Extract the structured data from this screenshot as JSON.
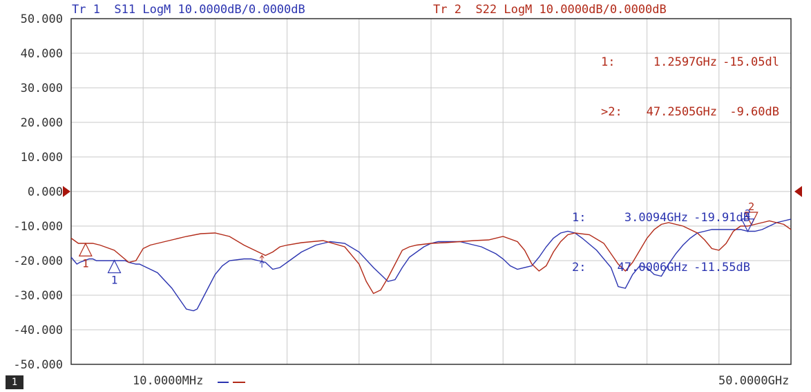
{
  "header": {
    "tr1": "Tr 1  S11 LogM 10.0000dB/0.0000dB",
    "tr2": "Tr 2  S22 LogM 10.0000dB/0.0000dB"
  },
  "markers_tr2": [
    {
      "label": "1:",
      "freq": "1.2597GHz",
      "value": "-15.05dl"
    },
    {
      "label": ">2:",
      "freq": "47.2505GHz",
      "value": "-9.60dB"
    }
  ],
  "markers_tr1": [
    {
      "label": "1:",
      "freq": "3.0094GHz",
      "value": "-19.91dB"
    },
    {
      "label": "2:",
      "freq": "47.0006GHz",
      "value": "-11.55dB"
    }
  ],
  "footer": {
    "channel": "1",
    "start": "10.0000MHz",
    "stop": "50.0000GHz"
  },
  "colors": {
    "tr1": "#2b34b0",
    "tr2": "#b22a18",
    "grid": "#c8c8c8",
    "frame": "#333333",
    "reference_arrow": "#a8150c"
  },
  "chart_data": {
    "type": "line",
    "title": "",
    "xlabel": "",
    "ylabel": "",
    "x_divisions": 10,
    "x_start_label": "10.0000MHz",
    "x_stop_label": "50.0000GHz",
    "yticks": [
      "50.000",
      "40.000",
      "30.000",
      "20.000",
      "10.000",
      "0.000",
      "-10.000",
      "-20.000",
      "-30.000",
      "-40.000",
      "-50.000"
    ],
    "ylim": [
      -50,
      50
    ],
    "reference_level": 0,
    "grid": true,
    "series": [
      {
        "name": "Tr 1 S11",
        "x": [
          0,
          0.08,
          0.12,
          0.25,
          0.3,
          0.35,
          0.5,
          0.6,
          0.75,
          0.8,
          0.9,
          0.95,
          1.0,
          1.2,
          1.4,
          1.5,
          1.6,
          1.7,
          1.75,
          1.8,
          1.9,
          2.0,
          2.1,
          2.2,
          2.4,
          2.5,
          2.6,
          2.7,
          2.8,
          2.9,
          3.0,
          3.1,
          3.2,
          3.3,
          3.4,
          3.5,
          3.6,
          3.8,
          4.0,
          4.2,
          4.4,
          4.5,
          4.6,
          4.7,
          4.9,
          5.0,
          5.1,
          5.2,
          5.4,
          5.5,
          5.6,
          5.7,
          5.9,
          6.0,
          6.1,
          6.2,
          6.4,
          6.5,
          6.6,
          6.7,
          6.8,
          6.9,
          7.0,
          7.1,
          7.3,
          7.5,
          7.6,
          7.7,
          7.8,
          7.9,
          8.0,
          8.1,
          8.2,
          8.3,
          8.4,
          8.5,
          8.6,
          8.7,
          8.8,
          8.9,
          9.0,
          9.1,
          9.2,
          9.3,
          9.4,
          9.5,
          9.6,
          9.7,
          9.8,
          9.9,
          10.0
        ],
        "values": [
          -19,
          -21,
          -20.5,
          -19.5,
          -19.5,
          -20,
          -20,
          -20,
          -20,
          -20.5,
          -21,
          -21,
          -21.5,
          -23.5,
          -28,
          -31,
          -34,
          -34.5,
          -34,
          -32,
          -28,
          -24,
          -21.5,
          -20,
          -19.5,
          -19.5,
          -20,
          -20.5,
          -22.5,
          -22,
          -20.5,
          -19,
          -17.5,
          -16.5,
          -15.5,
          -15,
          -14.5,
          -15,
          -17.5,
          -22,
          -26,
          -25.5,
          -22,
          -19,
          -16,
          -15,
          -14.5,
          -14.5,
          -14.5,
          -15,
          -15.5,
          -16,
          -18,
          -19.5,
          -21.5,
          -22.5,
          -21.5,
          -19,
          -16,
          -13.5,
          -12,
          -11.5,
          -12,
          -13.5,
          -17,
          -22,
          -27.5,
          -28,
          -24,
          -21.5,
          -22,
          -24,
          -24.5,
          -21,
          -18,
          -15.5,
          -13.5,
          -12,
          -11.5,
          -11,
          -11,
          -11,
          -11,
          -11,
          -11.5,
          -11.5,
          -11,
          -10,
          -9,
          -8.5,
          -8
        ]
      },
      {
        "name": "Tr 2 S22",
        "x": [
          0,
          0.1,
          0.2,
          0.3,
          0.4,
          0.6,
          0.8,
          0.9,
          1.0,
          1.1,
          1.2,
          1.4,
          1.6,
          1.8,
          2.0,
          2.2,
          2.4,
          2.6,
          2.7,
          2.8,
          2.9,
          3.0,
          3.2,
          3.5,
          3.8,
          4.0,
          4.1,
          4.2,
          4.3,
          4.4,
          4.5,
          4.6,
          4.7,
          4.8,
          5.0,
          5.2,
          5.4,
          5.6,
          5.8,
          6.0,
          6.2,
          6.3,
          6.4,
          6.5,
          6.6,
          6.7,
          6.8,
          6.9,
          7.0,
          7.2,
          7.4,
          7.6,
          7.7,
          7.8,
          7.9,
          8.0,
          8.1,
          8.2,
          8.3,
          8.5,
          8.7,
          8.8,
          8.9,
          9.0,
          9.1,
          9.2,
          9.3,
          9.4,
          9.5,
          9.6,
          9.7,
          9.8,
          9.9,
          10.0
        ],
        "values": [
          -13.5,
          -15,
          -15,
          -15,
          -15.5,
          -17,
          -20.5,
          -20,
          -16.5,
          -15.5,
          -15,
          -14,
          -13,
          -12.2,
          -12,
          -13,
          -15.5,
          -17.5,
          -18.5,
          -17.5,
          -16,
          -15.5,
          -14.8,
          -14.2,
          -16,
          -21,
          -26,
          -29.5,
          -28.5,
          -25,
          -21,
          -17,
          -16,
          -15.5,
          -15,
          -14.8,
          -14.5,
          -14.2,
          -14,
          -13,
          -14.5,
          -17,
          -21,
          -23,
          -21.5,
          -17.5,
          -14.5,
          -12.5,
          -12,
          -12.5,
          -15,
          -21,
          -23,
          -20.5,
          -17,
          -13.5,
          -11,
          -9.5,
          -9,
          -10,
          -12,
          -14,
          -16.5,
          -17,
          -15,
          -11.5,
          -10,
          -10,
          -9.5,
          -9,
          -8.5,
          -9,
          -9.5,
          -11
        ]
      }
    ],
    "markers": [
      {
        "series": "Tr 2 S22",
        "label": "1",
        "x": 0.2,
        "y": -15.05
      },
      {
        "series": "Tr 1 S11",
        "label": "1",
        "x": 0.6,
        "y": -19.91
      },
      {
        "series": "Tr 2 S22",
        "label": "2",
        "x": 9.45,
        "y": -9.6
      },
      {
        "series": "Tr 1 S11",
        "label": "2",
        "x": 9.4,
        "y": -11.55
      }
    ],
    "unlabeled_marker_arrows": [
      {
        "series": "Tr 2 S22",
        "x": 2.65,
        "y": -18.5
      },
      {
        "series": "Tr 1 S11",
        "x": 2.65,
        "y": -20
      }
    ],
    "legend": "bottom-left"
  }
}
